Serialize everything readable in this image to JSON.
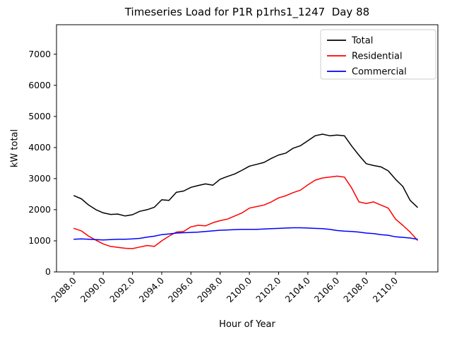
{
  "chart_data": {
    "type": "line",
    "title": "Timeseries Load for P1R p1rhs1_1247  Day 88",
    "xlabel": "Hour of Year",
    "ylabel": "kW total",
    "xlim": [
      2086.8,
      2112.9
    ],
    "ylim": [
      0,
      7950
    ],
    "grid": false,
    "legend_position": "upper right",
    "xticks": [
      2088,
      2090,
      2092,
      2094,
      2096,
      2098,
      2100,
      2102,
      2104,
      2106,
      2108,
      2110
    ],
    "xtick_labels": [
      "2088.0",
      "2090.0",
      "2092.0",
      "2094.0",
      "2096.0",
      "2098.0",
      "2100.0",
      "2102.0",
      "2104.0",
      "2106.0",
      "2108.0",
      "2110.0"
    ],
    "yticks": [
      0,
      1000,
      2000,
      3000,
      4000,
      5000,
      6000,
      7000
    ],
    "x": [
      2088.0,
      2088.5,
      2089.0,
      2089.5,
      2090.0,
      2090.5,
      2091.0,
      2091.5,
      2092.0,
      2092.5,
      2093.0,
      2093.5,
      2094.0,
      2094.5,
      2095.0,
      2095.5,
      2096.0,
      2096.5,
      2097.0,
      2097.5,
      2098.0,
      2098.5,
      2099.0,
      2099.5,
      2100.0,
      2100.5,
      2101.0,
      2101.5,
      2102.0,
      2102.5,
      2103.0,
      2103.5,
      2104.0,
      2104.5,
      2105.0,
      2105.5,
      2106.0,
      2106.5,
      2107.0,
      2107.5,
      2108.0,
      2108.5,
      2109.0,
      2109.5,
      2110.0,
      2110.5,
      2111.0,
      2111.5
    ],
    "series": [
      {
        "name": "Total",
        "color": "#000000",
        "values": [
          2450,
          2350,
          2150,
          2000,
          1900,
          1850,
          1860,
          1800,
          1840,
          1950,
          2000,
          2080,
          2320,
          2300,
          2560,
          2600,
          2720,
          2780,
          2830,
          2790,
          2980,
          3070,
          3150,
          3270,
          3400,
          3460,
          3520,
          3650,
          3760,
          3820,
          3980,
          4060,
          4220,
          4380,
          4430,
          4380,
          4400,
          4380,
          4050,
          3750,
          3480,
          3420,
          3380,
          3250,
          2980,
          2750,
          2300,
          2080
        ]
      },
      {
        "name": "Residential",
        "color": "#ff0000",
        "values": [
          1400,
          1320,
          1150,
          1020,
          900,
          820,
          790,
          760,
          750,
          800,
          850,
          820,
          1000,
          1150,
          1280,
          1300,
          1450,
          1500,
          1480,
          1580,
          1650,
          1700,
          1800,
          1900,
          2050,
          2100,
          2150,
          2250,
          2380,
          2450,
          2550,
          2630,
          2800,
          2950,
          3020,
          3050,
          3080,
          3050,
          2700,
          2250,
          2200,
          2250,
          2150,
          2050,
          1700,
          1500,
          1280,
          1020
        ]
      },
      {
        "name": "Commercial",
        "color": "#0000ff",
        "values": [
          1050,
          1060,
          1050,
          1040,
          1030,
          1040,
          1050,
          1050,
          1060,
          1080,
          1120,
          1150,
          1200,
          1220,
          1250,
          1260,
          1270,
          1280,
          1300,
          1320,
          1340,
          1350,
          1360,
          1370,
          1370,
          1370,
          1380,
          1390,
          1400,
          1410,
          1420,
          1420,
          1410,
          1400,
          1390,
          1370,
          1330,
          1310,
          1300,
          1280,
          1250,
          1230,
          1200,
          1180,
          1130,
          1110,
          1090,
          1050
        ]
      }
    ]
  }
}
